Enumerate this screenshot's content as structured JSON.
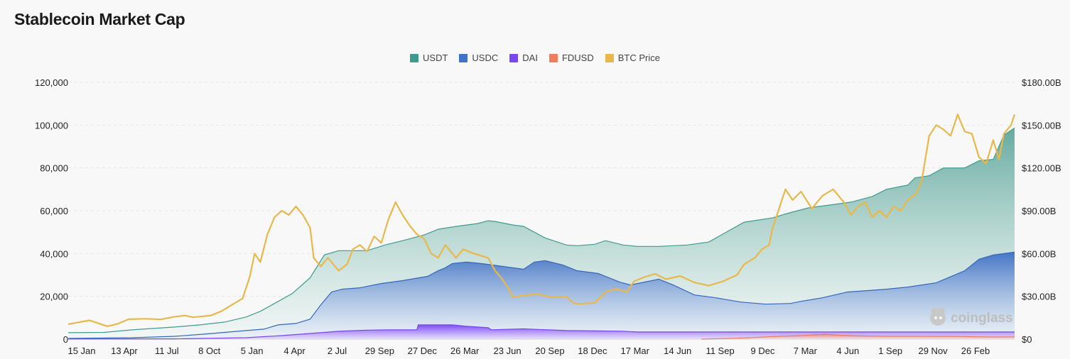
{
  "page": {
    "title": "Stablecoin Market Cap"
  },
  "watermark": "coinglass",
  "colors": {
    "USDT": "#3f9b8f",
    "USDC": "#3f74c9",
    "DAI": "#7a46f2",
    "FDUSD": "#ef7d5d",
    "BTC": "#e8b84a",
    "grid": "#e6e6e6"
  },
  "chart_data": {
    "type": "area",
    "title": "Stablecoin Market Cap",
    "legend_position": "top-center",
    "grid": true,
    "x_tick_labels": [
      "15 Jan",
      "13 Apr",
      "11 Jul",
      "8 Oct",
      "5 Jan",
      "4 Apr",
      "2 Jul",
      "29 Sep",
      "27 Dec",
      "26 Mar",
      "23 Jun",
      "20 Sep",
      "18 Dec",
      "17 Mar",
      "14 Jun",
      "11 Sep",
      "9 Dec",
      "7 Mar",
      "4 Jun",
      "1 Sep",
      "29 Nov",
      "26 Feb"
    ],
    "x_range": [
      0,
      1330
    ],
    "left_axis": {
      "ticks": [
        "0",
        "20,000",
        "40,000",
        "60,000",
        "80,000",
        "100,000",
        "120,000"
      ],
      "range": [
        0,
        120000
      ]
    },
    "right_axis": {
      "ticks": [
        "$0",
        "$30.00B",
        "$60.00B",
        "$90.00B",
        "$120.00B",
        "$150.00B",
        "$180.00B"
      ],
      "range": [
        0,
        180
      ]
    },
    "series": [
      {
        "name": "USDT",
        "axis": "right",
        "unit": "B USD",
        "points": [
          [
            0,
            4.5
          ],
          [
            50,
            4.7
          ],
          [
            90,
            6.5
          ],
          [
            150,
            8.5
          ],
          [
            185,
            10
          ],
          [
            220,
            12
          ],
          [
            250,
            15.5
          ],
          [
            270,
            19.5
          ],
          [
            290,
            25
          ],
          [
            315,
            32
          ],
          [
            340,
            43
          ],
          [
            360,
            59
          ],
          [
            380,
            62
          ],
          [
            400,
            62
          ],
          [
            420,
            62
          ],
          [
            445,
            66
          ],
          [
            470,
            69
          ],
          [
            500,
            73
          ],
          [
            520,
            77
          ],
          [
            545,
            79
          ],
          [
            575,
            81
          ],
          [
            590,
            83
          ],
          [
            600,
            82.5
          ],
          [
            625,
            80
          ],
          [
            640,
            79
          ],
          [
            655,
            75
          ],
          [
            670,
            71
          ],
          [
            700,
            66
          ],
          [
            715,
            65.5
          ],
          [
            740,
            66.5
          ],
          [
            755,
            69
          ],
          [
            780,
            66
          ],
          [
            800,
            65
          ],
          [
            830,
            65
          ],
          [
            870,
            66
          ],
          [
            900,
            68
          ],
          [
            950,
            82
          ],
          [
            990,
            85
          ],
          [
            1010,
            88
          ],
          [
            1040,
            92
          ],
          [
            1070,
            94
          ],
          [
            1100,
            96
          ],
          [
            1130,
            100
          ],
          [
            1150,
            105
          ],
          [
            1180,
            108
          ],
          [
            1190,
            113
          ],
          [
            1210,
            114.5
          ],
          [
            1230,
            120
          ],
          [
            1260,
            120
          ],
          [
            1280,
            125
          ],
          [
            1300,
            126
          ],
          [
            1315,
            143
          ],
          [
            1330,
            148
          ]
        ]
      },
      {
        "name": "USDC",
        "axis": "right",
        "unit": "B USD",
        "points": [
          [
            0,
            0.5
          ],
          [
            90,
            1
          ],
          [
            150,
            2
          ],
          [
            190,
            3.5
          ],
          [
            250,
            6
          ],
          [
            275,
            7
          ],
          [
            295,
            10
          ],
          [
            320,
            11
          ],
          [
            340,
            14
          ],
          [
            355,
            24
          ],
          [
            370,
            33
          ],
          [
            385,
            35
          ],
          [
            410,
            36
          ],
          [
            440,
            39
          ],
          [
            470,
            41
          ],
          [
            505,
            44
          ],
          [
            520,
            48
          ],
          [
            530,
            50
          ],
          [
            540,
            53
          ],
          [
            560,
            54
          ],
          [
            580,
            53
          ],
          [
            610,
            51
          ],
          [
            640,
            49
          ],
          [
            655,
            54
          ],
          [
            670,
            55
          ],
          [
            695,
            52
          ],
          [
            715,
            48
          ],
          [
            745,
            46
          ],
          [
            775,
            40
          ],
          [
            790,
            38
          ],
          [
            800,
            39
          ],
          [
            830,
            42
          ],
          [
            850,
            38
          ],
          [
            880,
            31
          ],
          [
            910,
            29
          ],
          [
            945,
            26
          ],
          [
            980,
            24.5
          ],
          [
            1015,
            25
          ],
          [
            1030,
            26.5
          ],
          [
            1060,
            29
          ],
          [
            1095,
            33
          ],
          [
            1150,
            35
          ],
          [
            1180,
            36.5
          ],
          [
            1220,
            39.5
          ],
          [
            1260,
            48
          ],
          [
            1280,
            56
          ],
          [
            1300,
            59
          ],
          [
            1330,
            61
          ]
        ]
      },
      {
        "name": "DAI",
        "axis": "right",
        "unit": "B USD",
        "points": [
          [
            0,
            0.1
          ],
          [
            150,
            0.2
          ],
          [
            250,
            1
          ],
          [
            300,
            2.5
          ],
          [
            340,
            4
          ],
          [
            380,
            5.5
          ],
          [
            420,
            6.3
          ],
          [
            450,
            6.5
          ],
          [
            490,
            6.5
          ],
          [
            492,
            10
          ],
          [
            540,
            10
          ],
          [
            560,
            9
          ],
          [
            590,
            8
          ],
          [
            595,
            6.5
          ],
          [
            640,
            7.2
          ],
          [
            700,
            6
          ],
          [
            780,
            5.5
          ],
          [
            800,
            5
          ],
          [
            900,
            5
          ],
          [
            920,
            5
          ],
          [
            1330,
            5
          ]
        ]
      },
      {
        "name": "FDUSD",
        "axis": "right",
        "unit": "B USD",
        "points": [
          [
            890,
            0
          ],
          [
            950,
            0.8
          ],
          [
            990,
            1.8
          ],
          [
            1030,
            2.5
          ],
          [
            1065,
            3.5
          ],
          [
            1080,
            2.8
          ],
          [
            1110,
            2.3
          ],
          [
            1150,
            2
          ],
          [
            1200,
            2
          ],
          [
            1250,
            1.9
          ],
          [
            1300,
            1.5
          ],
          [
            1330,
            1.6
          ]
        ]
      },
      {
        "name": "BTC Price",
        "axis": "left",
        "unit": "USD",
        "points": [
          [
            0,
            7000
          ],
          [
            30,
            8800
          ],
          [
            55,
            6000
          ],
          [
            70,
            7200
          ],
          [
            85,
            9300
          ],
          [
            110,
            9500
          ],
          [
            130,
            9200
          ],
          [
            150,
            10500
          ],
          [
            165,
            11000
          ],
          [
            175,
            10200
          ],
          [
            200,
            11000
          ],
          [
            215,
            13000
          ],
          [
            230,
            16000
          ],
          [
            245,
            19000
          ],
          [
            255,
            29000
          ],
          [
            262,
            40000
          ],
          [
            270,
            36000
          ],
          [
            280,
            49000
          ],
          [
            290,
            57000
          ],
          [
            300,
            60000
          ],
          [
            310,
            58000
          ],
          [
            320,
            62000
          ],
          [
            330,
            58000
          ],
          [
            340,
            52000
          ],
          [
            345,
            38000
          ],
          [
            355,
            34000
          ],
          [
            365,
            38000
          ],
          [
            380,
            32000
          ],
          [
            392,
            35000
          ],
          [
            400,
            42000
          ],
          [
            410,
            44000
          ],
          [
            420,
            41000
          ],
          [
            430,
            48000
          ],
          [
            440,
            45000
          ],
          [
            450,
            56000
          ],
          [
            460,
            64000
          ],
          [
            470,
            58000
          ],
          [
            480,
            53000
          ],
          [
            490,
            49000
          ],
          [
            500,
            47000
          ],
          [
            510,
            40000
          ],
          [
            520,
            38000
          ],
          [
            530,
            44000
          ],
          [
            545,
            38000
          ],
          [
            555,
            42000
          ],
          [
            570,
            40000
          ],
          [
            590,
            38000
          ],
          [
            600,
            32000
          ],
          [
            610,
            28000
          ],
          [
            620,
            23000
          ],
          [
            625,
            19500
          ],
          [
            640,
            20500
          ],
          [
            660,
            21000
          ],
          [
            680,
            19500
          ],
          [
            700,
            20000
          ],
          [
            710,
            16800
          ],
          [
            720,
            16500
          ],
          [
            740,
            17000
          ],
          [
            755,
            22000
          ],
          [
            770,
            23500
          ],
          [
            785,
            22000
          ],
          [
            795,
            27000
          ],
          [
            810,
            29000
          ],
          [
            825,
            30500
          ],
          [
            840,
            28000
          ],
          [
            860,
            29500
          ],
          [
            880,
            26500
          ],
          [
            900,
            25000
          ],
          [
            920,
            27000
          ],
          [
            940,
            30000
          ],
          [
            950,
            35000
          ],
          [
            965,
            38000
          ],
          [
            975,
            42000
          ],
          [
            985,
            44000
          ],
          [
            990,
            52000
          ],
          [
            1000,
            62000
          ],
          [
            1008,
            70000
          ],
          [
            1018,
            65000
          ],
          [
            1030,
            69000
          ],
          [
            1045,
            61000
          ],
          [
            1060,
            67000
          ],
          [
            1075,
            70000
          ],
          [
            1090,
            64000
          ],
          [
            1100,
            58000
          ],
          [
            1110,
            62000
          ],
          [
            1120,
            64000
          ],
          [
            1130,
            57000
          ],
          [
            1140,
            60000
          ],
          [
            1150,
            57000
          ],
          [
            1160,
            62000
          ],
          [
            1170,
            60000
          ],
          [
            1180,
            65000
          ],
          [
            1192,
            68000
          ],
          [
            1200,
            75000
          ],
          [
            1210,
            95000
          ],
          [
            1220,
            100000
          ],
          [
            1230,
            98000
          ],
          [
            1240,
            95000
          ],
          [
            1250,
            105000
          ],
          [
            1260,
            97000
          ],
          [
            1270,
            96000
          ],
          [
            1280,
            85000
          ],
          [
            1290,
            82000
          ],
          [
            1300,
            93000
          ],
          [
            1308,
            84000
          ],
          [
            1315,
            96000
          ],
          [
            1325,
            100000
          ],
          [
            1330,
            105000
          ]
        ]
      }
    ]
  }
}
